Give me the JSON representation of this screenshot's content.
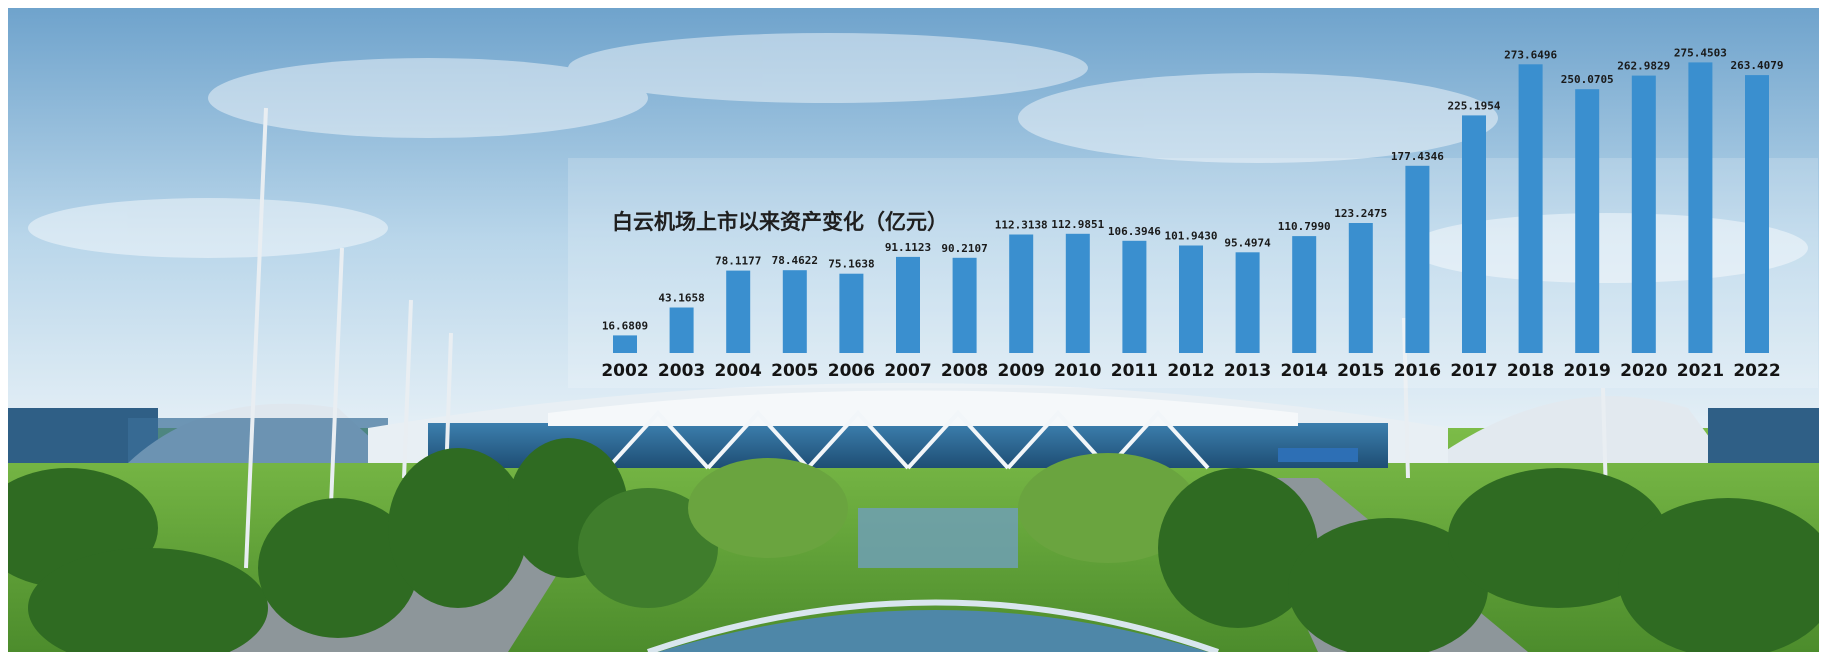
{
  "colors": {
    "bar": "#3a8fcf",
    "sky_top": "#7fb0d6",
    "sky_bottom": "#d6e8f3",
    "terminal_roof": "#e8eff4",
    "terminal_glass": "#2f6f9f",
    "grass": "#5fa63a",
    "trees": "#2f6b22",
    "road": "#8d969a",
    "water": "#4e87a8"
  },
  "chart_data": {
    "type": "bar",
    "title": "白云机场上市以来资产变化（亿元）",
    "categories": [
      "2002",
      "2003",
      "2004",
      "2005",
      "2006",
      "2007",
      "2008",
      "2009",
      "2010",
      "2011",
      "2012",
      "2013",
      "2014",
      "2015",
      "2016",
      "2017",
      "2018",
      "2019",
      "2020",
      "2021",
      "2022"
    ],
    "value_labels": [
      "16.6809",
      "43.1658",
      "78.1177",
      "78.4622",
      "75.1638",
      "91.1123",
      "90.2107",
      "112.3138",
      "112.9851",
      "106.3946",
      "101.9430",
      "95.4974",
      "110.7990",
      "123.2475",
      "177.4346",
      "225.1954",
      "273.6496",
      "250.0705",
      "262.9829",
      "275.4503",
      "263.4079"
    ],
    "values": [
      16.6809,
      43.1658,
      78.1177,
      78.4622,
      75.1638,
      91.1123,
      90.2107,
      112.3138,
      112.9851,
      106.3946,
      101.943,
      95.4974,
      110.799,
      123.2475,
      177.4346,
      225.1954,
      273.6496,
      250.0705,
      262.9829,
      275.4503,
      263.4079
    ],
    "ylim": [
      0,
      280
    ],
    "grid": false,
    "legend": "none"
  }
}
